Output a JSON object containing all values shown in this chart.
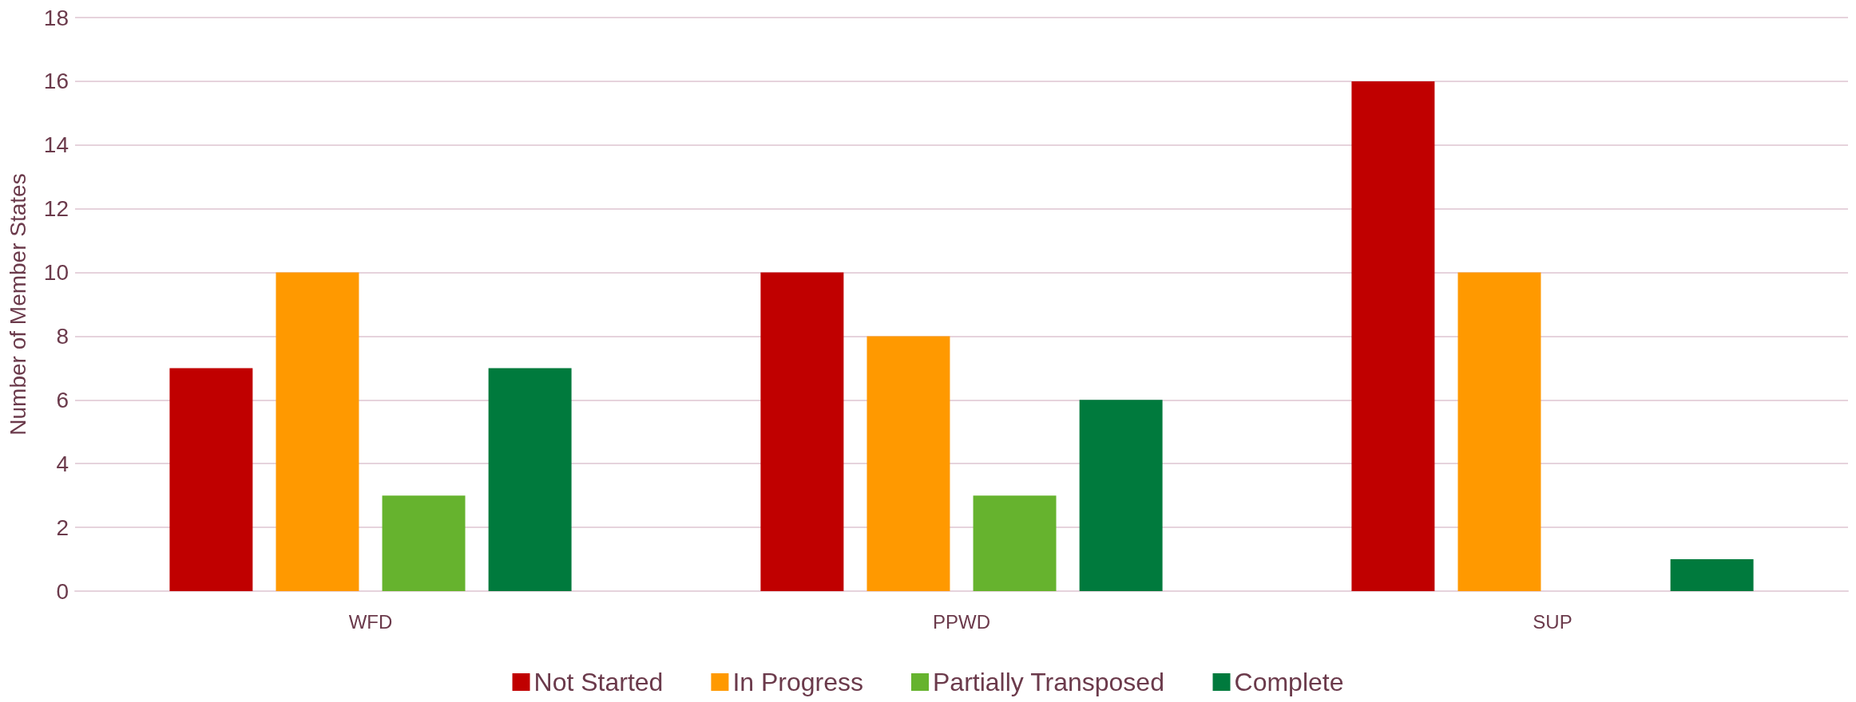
{
  "chart_data": {
    "type": "bar",
    "ylabel": "Number of Member States",
    "categories": [
      "WFD",
      "PPWD",
      "SUP"
    ],
    "series": [
      {
        "name": "Not Started",
        "color": "#c00000",
        "values": [
          7,
          10,
          16
        ]
      },
      {
        "name": "In Progress",
        "color": "#ff9900",
        "values": [
          10,
          8,
          10
        ]
      },
      {
        "name": "Partially Transposed",
        "color": "#66b32e",
        "values": [
          3,
          3,
          0
        ]
      },
      {
        "name": "Complete",
        "color": "#007a3d",
        "values": [
          7,
          6,
          1
        ]
      }
    ],
    "ylim": [
      0,
      18
    ],
    "yticks": [
      0,
      2,
      4,
      6,
      8,
      10,
      12,
      14,
      16,
      18
    ],
    "grid": "y",
    "legend": "bottom"
  }
}
